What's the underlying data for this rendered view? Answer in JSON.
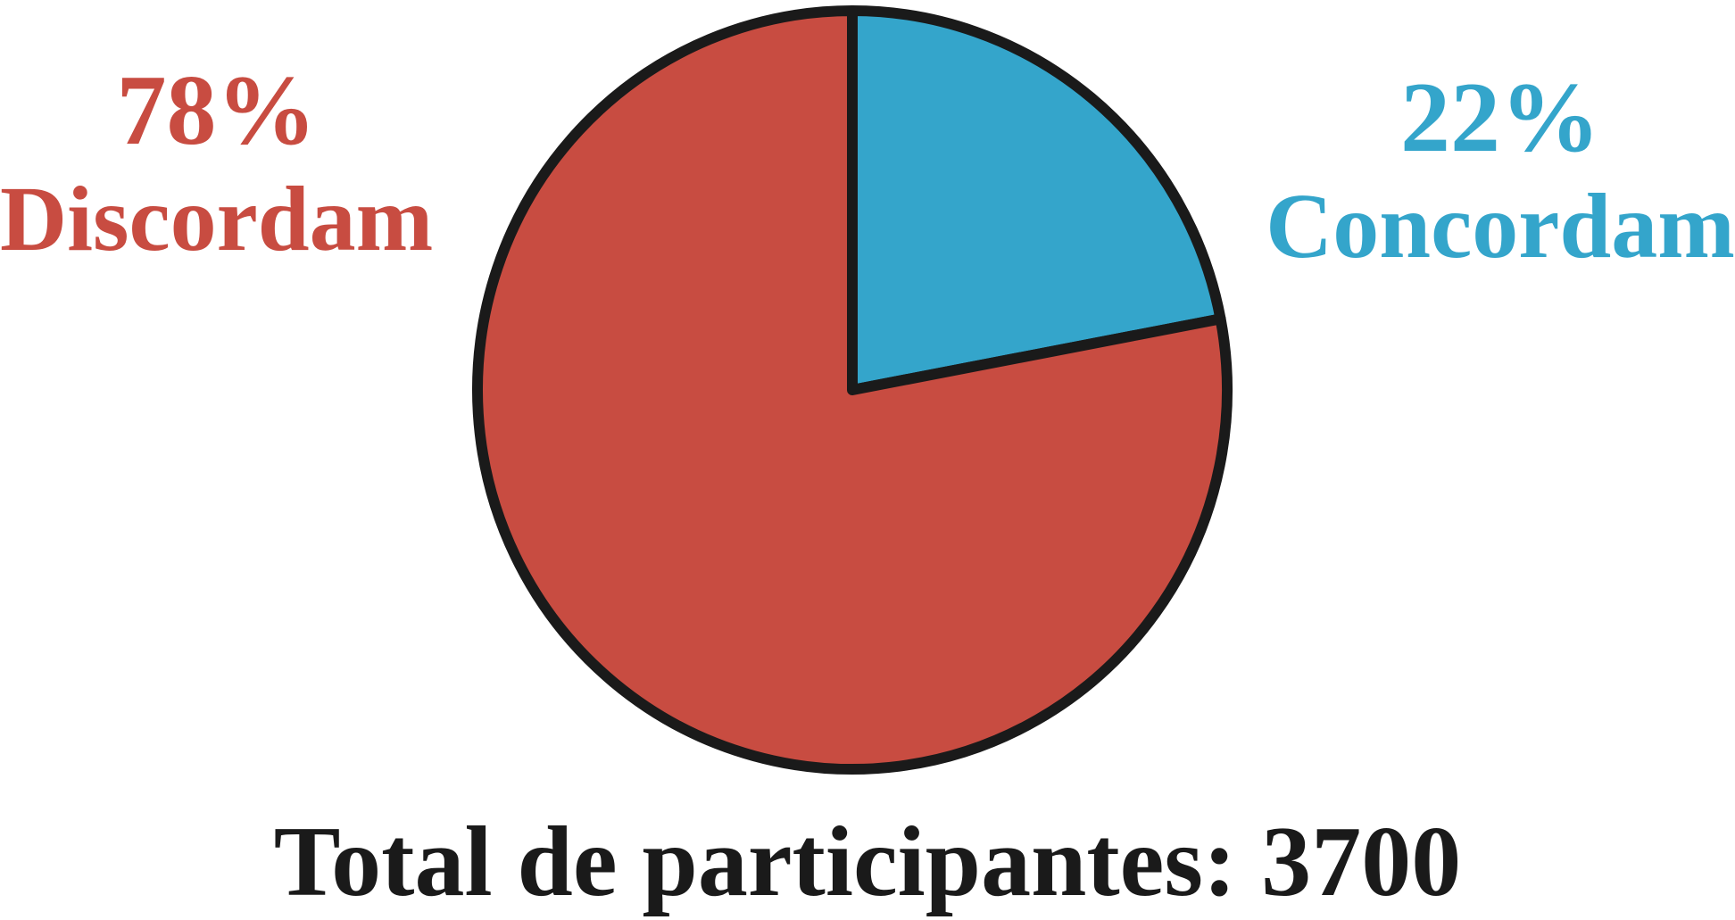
{
  "chart_data": {
    "type": "pie",
    "slices": [
      {
        "label": "Concordam",
        "value": 22,
        "display": "22%",
        "color": "#34a5cb"
      },
      {
        "label": "Discordam",
        "value": 78,
        "display": "78%",
        "color": "#c84c41"
      }
    ],
    "outline_color": "#1a1a1a",
    "start_angle_deg": 0,
    "direction": "clockwise",
    "total_label": "Total de participantes: 3700"
  }
}
